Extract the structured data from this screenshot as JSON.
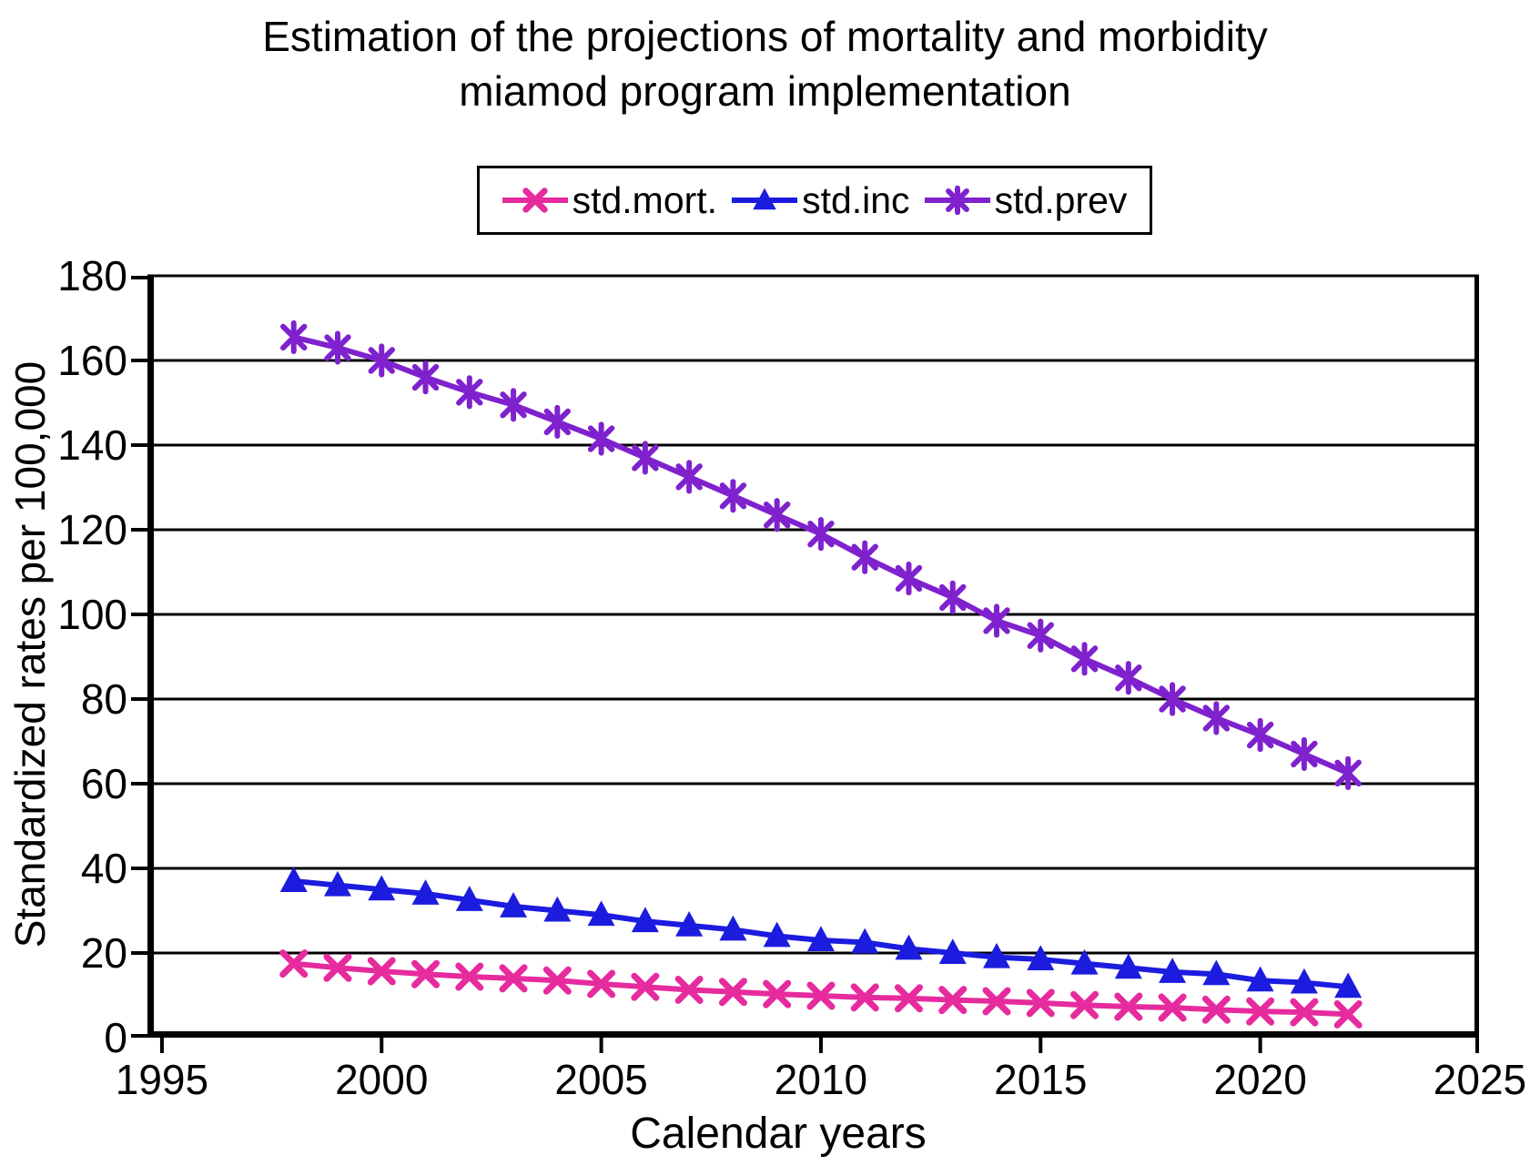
{
  "page": {
    "background": "#FFFFFF"
  },
  "chart_data": {
    "type": "line",
    "title_line1": "Estimation of the projections of mortality and morbidity",
    "title_line2": "miamod program implementation",
    "xlabel": "Calendar years",
    "ylabel": "Standardized rates per 100,000",
    "x_ticks": [
      1995,
      2000,
      2005,
      2010,
      2015,
      2020,
      2025
    ],
    "y_ticks": [
      0,
      20,
      40,
      60,
      80,
      100,
      120,
      140,
      160,
      180
    ],
    "ylim": [
      0,
      180
    ],
    "xlim": [
      1994.67,
      2024.98
    ],
    "grid": "horizontal-black",
    "legend_position": "top-center",
    "x": [
      1998,
      1999,
      2000,
      2001,
      2002,
      2003,
      2004,
      2005,
      2006,
      2007,
      2008,
      2009,
      2010,
      2011,
      2012,
      2013,
      2014,
      2015,
      2016,
      2017,
      2018,
      2019,
      2020,
      2021,
      2022
    ],
    "series": [
      {
        "name": "std.mort.",
        "marker": "x",
        "color": "#E62B9E",
        "values": [
          17.5,
          16.5,
          15.7,
          15,
          14.4,
          14,
          13.5,
          12.7,
          12,
          11.3,
          10.8,
          10.3,
          9.9,
          9.5,
          9.3,
          8.9,
          8.6,
          8.2,
          7.7,
          7.3,
          7.1,
          6.6,
          6.2,
          6,
          5.5
        ]
      },
      {
        "name": "std.inc",
        "marker": "triangle",
        "color": "#1C1CDF",
        "values": [
          37,
          36,
          35,
          34,
          32.5,
          31,
          30,
          29,
          27.5,
          26.5,
          25.5,
          24,
          23,
          22.5,
          21,
          20,
          19,
          18.5,
          17.5,
          16.5,
          15.5,
          15,
          13.5,
          13,
          12
        ]
      },
      {
        "name": "std.prev",
        "marker": "asterisk",
        "color": "#7F22CE",
        "values": [
          165.5,
          163,
          160,
          156,
          152.5,
          149.5,
          145.5,
          141.5,
          137,
          132.5,
          128,
          123.5,
          119,
          113.5,
          108.5,
          104,
          98.5,
          95,
          89.5,
          85,
          80,
          75.5,
          71.5,
          67,
          62.5
        ]
      }
    ]
  }
}
